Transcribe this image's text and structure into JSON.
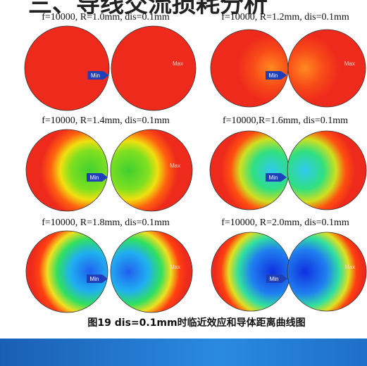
{
  "header": {
    "title": "三、导线交流损耗分析"
  },
  "panels": [
    {
      "caption": "f=10000, R=1.0mm, dis=0.1mm",
      "min_label": "Min",
      "max_label": "Max"
    },
    {
      "caption": "f=10000, R=1.2mm, dis=0.1mm",
      "min_label": "Min",
      "max_label": "Max"
    },
    {
      "caption": "f=10000, R=1.4mm, dis=0.1mm",
      "min_label": "Min",
      "max_label": "Max"
    },
    {
      "caption": "f=10000,R=1.6mm, dis=0.1mm",
      "min_label": "Min"
    },
    {
      "caption": "f=10000, R=1.8mm, dis=0.1mm",
      "min_label": "Min",
      "max_label": "Max"
    },
    {
      "caption": "f=10000, R=2.0mm, dis=0.1mm",
      "min_label": "Min",
      "max_label": "Max"
    }
  ],
  "figure_caption": "图19 dis=0.1mm时临近效应和导体距离曲线图"
}
